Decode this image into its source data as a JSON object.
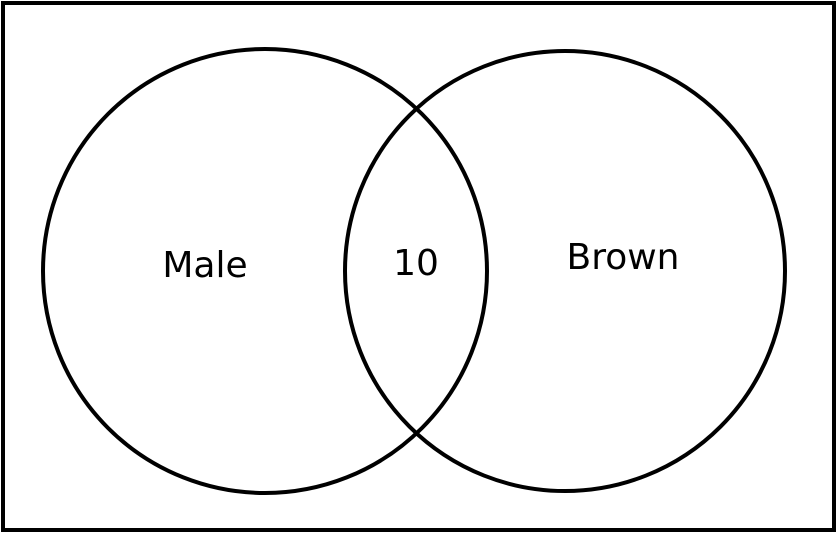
{
  "diagram": {
    "sets": [
      {
        "label": "Male"
      },
      {
        "label": "Brown"
      }
    ],
    "intersection": {
      "label": "10"
    }
  },
  "colors": {
    "stroke": "#000000",
    "background": "#ffffff"
  }
}
